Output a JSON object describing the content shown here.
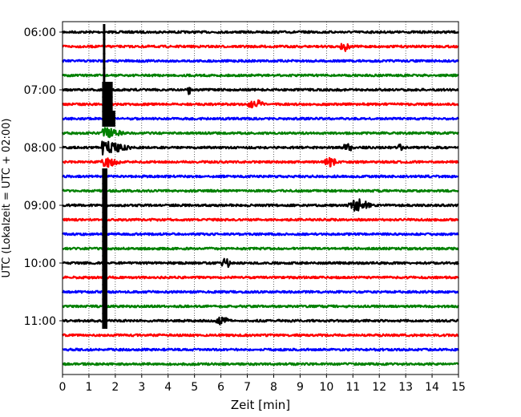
{
  "chart_data": {
    "type": "line",
    "subtype": "helicorder-seismogram",
    "title": "",
    "xlabel": "Zeit  [min]",
    "ylabel": "UTC (Lokalzeit = UTC + 02:00)",
    "xlim": [
      0,
      15
    ],
    "x_ticks": [
      "0",
      "1",
      "2",
      "3",
      "4",
      "5",
      "6",
      "7",
      "8",
      "9",
      "10",
      "11",
      "12",
      "13",
      "14",
      "15"
    ],
    "y_ticks": [
      "06:00",
      "07:00",
      "08:00",
      "09:00",
      "10:00",
      "11:00"
    ],
    "trace_interval_min": 15,
    "trace_start_times": [
      "06:00",
      "06:15",
      "06:30",
      "06:45",
      "07:00",
      "07:15",
      "07:30",
      "07:45",
      "08:00",
      "08:15",
      "08:30",
      "08:45",
      "09:00",
      "09:15",
      "09:30",
      "09:45",
      "10:00",
      "10:15",
      "10:30",
      "10:45",
      "11:00",
      "11:15",
      "11:30",
      "11:45"
    ],
    "trace_colors": [
      "#000000",
      "#ff0000",
      "#0000ff",
      "#008000"
    ],
    "grid": {
      "x": true,
      "y": false,
      "style": "dotted"
    },
    "events": [
      {
        "trace_start": "06:00",
        "start_min": 1.55,
        "end_min": 1.6,
        "type": "large-vertical-spike"
      },
      {
        "trace_start": "06:15",
        "start_min": 1.55,
        "end_min": 1.6,
        "type": "large-vertical-spike"
      },
      {
        "trace_start": "06:30",
        "start_min": 1.55,
        "end_min": 1.6,
        "type": "large-vertical-spike"
      },
      {
        "trace_start": "06:45",
        "start_min": 1.55,
        "end_min": 1.6,
        "type": "large-vertical-spike"
      },
      {
        "trace_start": "07:00",
        "start_min": 1.5,
        "end_min": 1.9,
        "type": "large-vertical-spike"
      },
      {
        "trace_start": "07:15",
        "start_min": 1.5,
        "end_min": 1.9,
        "type": "large-vertical-spike"
      },
      {
        "trace_start": "07:30",
        "start_min": 1.5,
        "end_min": 2.0,
        "type": "large-vertical-spike"
      },
      {
        "trace_start": "07:45",
        "start_min": 1.5,
        "end_min": 2.3,
        "type": "coda"
      },
      {
        "trace_start": "08:00",
        "start_min": 1.5,
        "end_min": 2.6,
        "type": "coda"
      },
      {
        "trace_start": "08:15",
        "start_min": 1.5,
        "end_min": 2.2,
        "type": "coda"
      },
      {
        "trace_start": "08:30",
        "start_min": 1.5,
        "end_min": 1.7,
        "type": "large-vertical-spike"
      },
      {
        "trace_start": "08:45",
        "start_min": 1.5,
        "end_min": 1.7,
        "type": "large-vertical-spike"
      },
      {
        "trace_start": "09:00",
        "start_min": 1.5,
        "end_min": 1.7,
        "type": "large-vertical-spike"
      },
      {
        "trace_start": "09:15",
        "start_min": 1.5,
        "end_min": 1.7,
        "type": "large-vertical-spike"
      },
      {
        "trace_start": "09:30",
        "start_min": 1.5,
        "end_min": 1.7,
        "type": "large-vertical-spike"
      },
      {
        "trace_start": "09:45",
        "start_min": 1.5,
        "end_min": 1.7,
        "type": "large-vertical-spike"
      },
      {
        "trace_start": "10:00",
        "start_min": 1.5,
        "end_min": 1.7,
        "type": "large-vertical-spike"
      },
      {
        "trace_start": "10:15",
        "start_min": 1.5,
        "end_min": 1.7,
        "type": "large-vertical-spike"
      },
      {
        "trace_start": "10:30",
        "start_min": 1.5,
        "end_min": 1.7,
        "type": "large-vertical-spike"
      },
      {
        "trace_start": "10:45",
        "start_min": 1.5,
        "end_min": 1.7,
        "type": "large-vertical-spike"
      },
      {
        "trace_start": "11:00",
        "start_min": 1.5,
        "end_min": 1.7,
        "type": "large-vertical-spike"
      },
      {
        "trace_start": "06:15",
        "start_min": 10.5,
        "end_min": 10.9,
        "type": "small-event"
      },
      {
        "trace_start": "07:00",
        "start_min": 4.7,
        "end_min": 4.9,
        "type": "small-event"
      },
      {
        "trace_start": "07:15",
        "start_min": 7.0,
        "end_min": 7.6,
        "type": "small-event"
      },
      {
        "trace_start": "08:00",
        "start_min": 10.6,
        "end_min": 11.0,
        "type": "small-event"
      },
      {
        "trace_start": "08:00",
        "start_min": 12.7,
        "end_min": 12.9,
        "type": "small-event"
      },
      {
        "trace_start": "08:15",
        "start_min": 9.9,
        "end_min": 10.4,
        "type": "small-event"
      },
      {
        "trace_start": "09:00",
        "start_min": 10.8,
        "end_min": 11.7,
        "type": "regional-event"
      },
      {
        "trace_start": "10:00",
        "start_min": 6.0,
        "end_min": 6.4,
        "type": "small-event"
      },
      {
        "trace_start": "11:00",
        "start_min": 5.8,
        "end_min": 6.3,
        "type": "small-event"
      }
    ]
  }
}
